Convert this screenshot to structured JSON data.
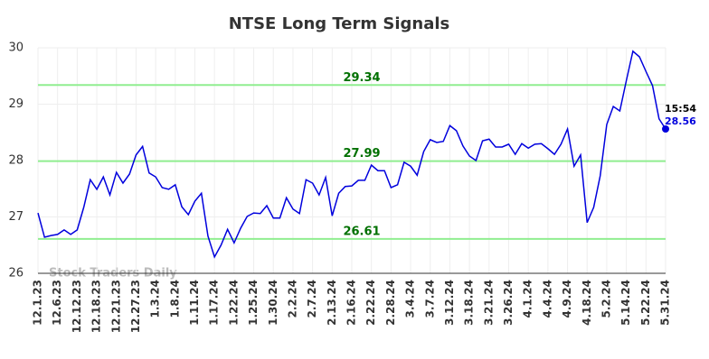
{
  "chart_data": {
    "type": "line",
    "title": "NTSE Long Term Signals",
    "watermark": "Stock Traders Daily",
    "categories": [
      "12.1.23",
      null,
      null,
      "12.6.23",
      null,
      null,
      "12.12.23",
      null,
      null,
      "12.18.23",
      null,
      null,
      "12.21.23",
      null,
      null,
      "12.27.23",
      null,
      null,
      "1.3.24",
      null,
      null,
      "1.8.24",
      null,
      null,
      "1.11.24",
      null,
      null,
      "1.17.24",
      null,
      null,
      "1.22.24",
      null,
      null,
      "1.25.24",
      null,
      null,
      "1.30.24",
      null,
      null,
      "2.2.24",
      null,
      null,
      "2.7.24",
      null,
      null,
      "2.13.24",
      null,
      null,
      "2.16.24",
      null,
      null,
      "2.22.24",
      null,
      null,
      "2.28.24",
      null,
      null,
      "3.4.24",
      null,
      null,
      "3.7.24",
      null,
      null,
      "3.12.24",
      null,
      null,
      "3.18.24",
      null,
      null,
      "3.21.24",
      null,
      null,
      "3.26.24",
      null,
      null,
      "4.1.24",
      null,
      null,
      "4.4.24",
      null,
      null,
      "4.9.24",
      null,
      null,
      "4.18.24",
      null,
      null,
      "5.2.24",
      null,
      null,
      "5.14.24",
      null,
      null,
      "5.22.24",
      null,
      null,
      "5.31.24"
    ],
    "series": [
      {
        "color": "#0000dd",
        "values": [
          27.07,
          26.64,
          26.67,
          26.69,
          26.77,
          26.69,
          26.77,
          27.17,
          27.66,
          27.49,
          27.71,
          27.39,
          27.79,
          27.6,
          27.76,
          28.1,
          28.25,
          27.78,
          27.71,
          27.52,
          27.49,
          27.57,
          27.18,
          27.04,
          27.28,
          27.42,
          26.66,
          26.29,
          26.5,
          26.78,
          26.54,
          26.8,
          27.01,
          27.07,
          27.06,
          27.2,
          26.98,
          26.98,
          27.34,
          27.14,
          27.06,
          27.66,
          27.6,
          27.39,
          27.7,
          27.02,
          27.42,
          27.54,
          27.55,
          27.65,
          27.65,
          27.92,
          27.82,
          27.82,
          27.52,
          27.57,
          27.97,
          27.9,
          27.74,
          28.16,
          28.37,
          28.32,
          28.34,
          28.62,
          28.53,
          28.26,
          28.08,
          28.0,
          28.35,
          28.38,
          28.24,
          28.24,
          28.29,
          28.11,
          28.3,
          28.22,
          28.29,
          28.3,
          28.21,
          28.11,
          28.29,
          28.56,
          27.9,
          28.1,
          26.9,
          27.17,
          27.73,
          28.64,
          28.96,
          28.88,
          29.42,
          29.94,
          29.84,
          29.58,
          29.33,
          28.74,
          28.56
        ]
      }
    ],
    "last_time": "15:54",
    "levels": [
      29.34,
      27.99,
      26.61
    ],
    "level_color": "#90ee90",
    "level_label_color": "#007000",
    "ylim": [
      26,
      30
    ],
    "yticks": [
      26,
      27,
      28,
      29,
      30
    ],
    "grid": true
  }
}
